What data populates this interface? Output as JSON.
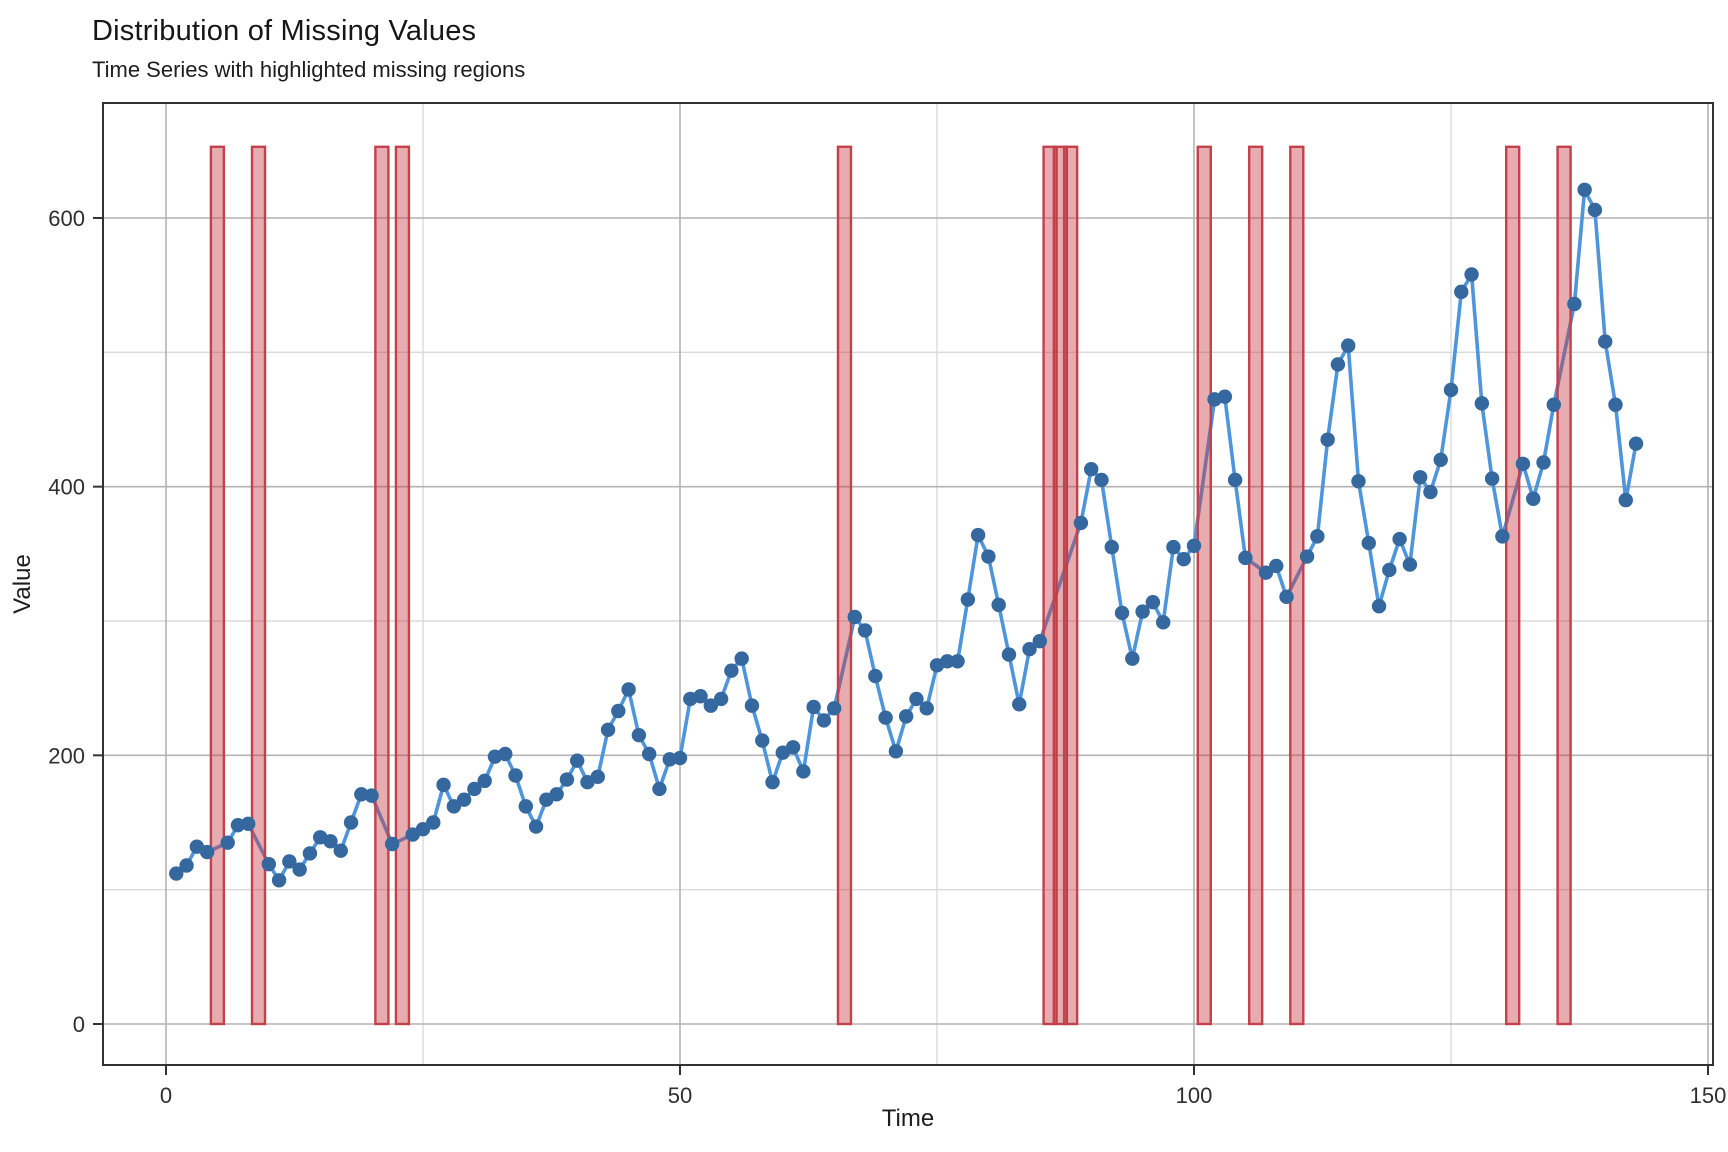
{
  "title": "Distribution of Missing Values",
  "subtitle": "Time Series with highlighted missing regions",
  "x_axis": {
    "label": "Time",
    "major_ticks": [
      0,
      50,
      100,
      150
    ],
    "minor_ticks": [
      25,
      75,
      125
    ]
  },
  "y_axis": {
    "label": "Value",
    "major_ticks": [
      0,
      200,
      400,
      600
    ],
    "minor_ticks": [
      100,
      300,
      500
    ]
  },
  "colors": {
    "line": "#4e95db",
    "point": "#35689e",
    "missing_fill": "rgba(198,58,66,0.42)",
    "missing_border": "#c2414a",
    "grid_major": "#b3b3b3",
    "grid_minor": "#dadada",
    "panel_border": "#333333",
    "tick": "#333333"
  },
  "chart_data": {
    "type": "line",
    "title": "Distribution of Missing Values",
    "subtitle": "Time Series with highlighted missing regions",
    "xlabel": "Time",
    "ylabel": "Value",
    "x_start": 1,
    "x_range": [
      -6,
      150.5
    ],
    "y_range": [
      -30,
      686
    ],
    "grid": true,
    "legend": false,
    "values": [
      112,
      118,
      132,
      128,
      null,
      135,
      148,
      149,
      null,
      119,
      107,
      121,
      115,
      127,
      139,
      136,
      129,
      150,
      171,
      170,
      null,
      134,
      null,
      141,
      145,
      150,
      178,
      162,
      167,
      175,
      181,
      199,
      201,
      185,
      162,
      147,
      167,
      171,
      182,
      196,
      180,
      184,
      219,
      233,
      249,
      215,
      201,
      175,
      197,
      198,
      242,
      244,
      237,
      242,
      263,
      272,
      237,
      211,
      180,
      202,
      206,
      188,
      236,
      226,
      235,
      null,
      303,
      293,
      259,
      228,
      203,
      229,
      242,
      235,
      267,
      270,
      270,
      316,
      364,
      348,
      312,
      275,
      238,
      279,
      285,
      null,
      null,
      null,
      373,
      413,
      405,
      355,
      306,
      272,
      307,
      314,
      299,
      355,
      346,
      356,
      null,
      465,
      467,
      405,
      347,
      null,
      336,
      341,
      318,
      null,
      348,
      363,
      435,
      491,
      505,
      404,
      358,
      311,
      338,
      361,
      342,
      407,
      396,
      420,
      472,
      545,
      558,
      462,
      406,
      363,
      null,
      417,
      391,
      418,
      461,
      null,
      536,
      621,
      606,
      508,
      461,
      390,
      432
    ],
    "missing_times": [
      5,
      9,
      21,
      23,
      66,
      86,
      87,
      88,
      101,
      106,
      110,
      131,
      136
    ],
    "missing_region_value_span": [
      0,
      653
    ]
  }
}
